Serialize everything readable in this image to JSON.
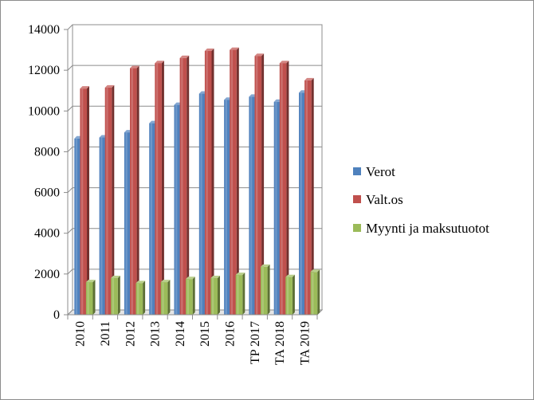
{
  "chart_data": {
    "type": "bar",
    "style": "3d-clustered-column",
    "categories": [
      "2010",
      "2011",
      "2012",
      "2013",
      "2014",
      "2015",
      "2016",
      "TP 2017",
      "TA 2018",
      "TA 2019"
    ],
    "series": [
      {
        "name": "Verot",
        "color": "#4f81bd",
        "values": [
          8650,
          8700,
          8950,
          9400,
          10300,
          10850,
          10550,
          10700,
          10450,
          10900
        ]
      },
      {
        "name": "Valt.os",
        "color": "#c0504d",
        "values": [
          11100,
          11150,
          12100,
          12350,
          12600,
          12950,
          13000,
          12700,
          12350,
          11500
        ]
      },
      {
        "name": "Myynti ja maksutuotot",
        "color": "#9bbb59",
        "values": [
          1600,
          1800,
          1550,
          1600,
          1750,
          1800,
          1950,
          2350,
          1850,
          2100
        ]
      }
    ],
    "ylim": [
      0,
      14000
    ],
    "yticks": [
      "0",
      "2000",
      "4000",
      "6000",
      "8000",
      "10000",
      "12000",
      "14000"
    ],
    "grid": true,
    "legend_position": "right"
  }
}
